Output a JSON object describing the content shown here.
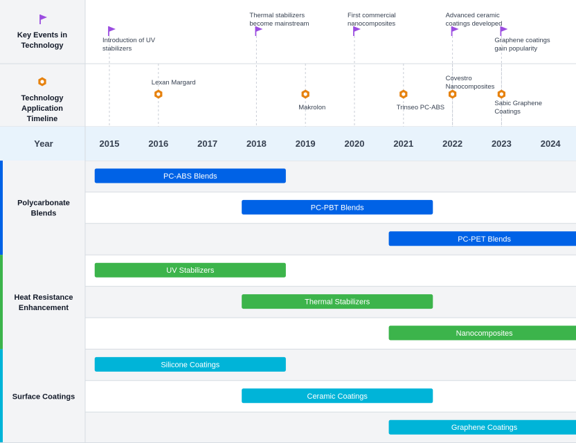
{
  "chart_data": {
    "type": "timeline",
    "title": "",
    "axis_label": "Year",
    "years": [
      "2015",
      "2016",
      "2017",
      "2018",
      "2019",
      "2020",
      "2021",
      "2022",
      "2023",
      "2024"
    ],
    "colors": {
      "accent_flag": "#9b4de0",
      "accent_hex": "#e6820f",
      "row_shade": "#f3f4f6",
      "axis_bg": "#e8f3fc",
      "grid": "#d6dbe1",
      "text_dark": "#111827",
      "text_mid": "#374151"
    },
    "event_lanes": [
      {
        "name": "Key Events in Technology",
        "icon": "flag-icon",
        "events": [
          {
            "year": 2015.0,
            "label": "Introduction of UV stabilizers"
          },
          {
            "year": 2018.0,
            "label": "Thermal stabilizers become mainstream"
          },
          {
            "year": 2020.0,
            "label": "First commercial nanocomposites"
          },
          {
            "year": 2022.0,
            "label": "Advanced ceramic coatings developed"
          },
          {
            "year": 2023.0,
            "label": "Graphene coatings gain popularity"
          }
        ]
      },
      {
        "name": "Technology Application Timeline",
        "icon": "hexagon-icon",
        "events": [
          {
            "year": 2016.0,
            "label": "Lexan Margard"
          },
          {
            "year": 2019.0,
            "label": "Makrolon"
          },
          {
            "year": 2021.0,
            "label": "Trinseo PC-ABS"
          },
          {
            "year": 2022.0,
            "label": "Covestro Nanocomposites"
          },
          {
            "year": 2023.0,
            "label": "Sabic Graphene Coatings"
          }
        ]
      }
    ],
    "groups": [
      {
        "name": "Polycarbonate Blends",
        "color": "#0062e6",
        "tasks": [
          {
            "label": "PC-ABS Blends",
            "start": 2014.7,
            "end": 2018.6
          },
          {
            "label": "PC-PBT Blends",
            "start": 2017.7,
            "end": 2021.6
          },
          {
            "label": "PC-PET Blends",
            "start": 2020.7,
            "end": 2024.6
          }
        ]
      },
      {
        "name": "Heat Resistance Enhancement",
        "color": "#3cb44b",
        "tasks": [
          {
            "label": "UV Stabilizers",
            "start": 2014.7,
            "end": 2018.6
          },
          {
            "label": "Thermal Stabilizers",
            "start": 2017.7,
            "end": 2021.6
          },
          {
            "label": "Nanocomposites",
            "start": 2020.7,
            "end": 2024.6
          }
        ]
      },
      {
        "name": "Surface Coatings",
        "color": "#00b4d8",
        "tasks": [
          {
            "label": "Silicone Coatings",
            "start": 2014.7,
            "end": 2018.6
          },
          {
            "label": "Ceramic Coatings",
            "start": 2017.7,
            "end": 2021.6
          },
          {
            "label": "Graphene Coatings",
            "start": 2020.7,
            "end": 2024.6
          }
        ]
      }
    ]
  }
}
